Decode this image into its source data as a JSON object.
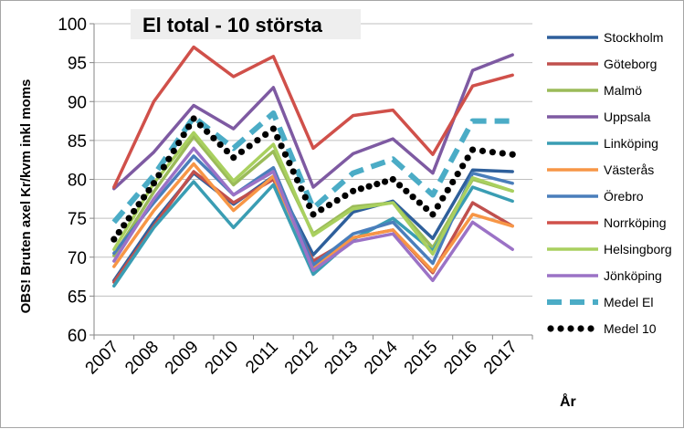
{
  "chart_data": {
    "type": "line",
    "title": "El total - 10 största",
    "ylabel": "OBS! Bruten axel Kr/kvm inkl moms",
    "xlabel": "År",
    "ylim": [
      60,
      100
    ],
    "yticks": [
      60,
      65,
      70,
      75,
      80,
      85,
      90,
      95,
      100
    ],
    "grid": "horizontal",
    "legend_position": "right",
    "categories": [
      "2007",
      "2008",
      "2009",
      "2010",
      "2011",
      "2012",
      "2013",
      "2014",
      "2015",
      "2016",
      "2017"
    ],
    "series": [
      {
        "name": "Stockholm",
        "color": "#2e5f9b",
        "style": "solid",
        "values": [
          67.0,
          74.5,
          80.8,
          76.8,
          80.4,
          70.3,
          75.8,
          77.2,
          72.4,
          81.2,
          81.0
        ]
      },
      {
        "name": "Göteborg",
        "color": "#c0504d",
        "style": "solid",
        "values": [
          66.8,
          74.0,
          81.0,
          77.0,
          80.0,
          69.5,
          72.5,
          73.5,
          68.0,
          77.0,
          74.0
        ]
      },
      {
        "name": "Malmö",
        "color": "#9bbb59",
        "style": "solid",
        "values": [
          70.2,
          78.4,
          85.5,
          79.3,
          83.6,
          73.0,
          76.5,
          77.0,
          71.2,
          80.0,
          78.5
        ]
      },
      {
        "name": "Uppsala",
        "color": "#7e5aa2",
        "style": "solid",
        "values": [
          78.8,
          83.5,
          89.5,
          86.5,
          91.8,
          79.0,
          83.3,
          85.2,
          80.8,
          94.0,
          96.0
        ]
      },
      {
        "name": "Linköping",
        "color": "#3a9db3",
        "style": "solid",
        "values": [
          66.3,
          73.8,
          79.7,
          73.8,
          79.3,
          67.8,
          72.3,
          75.0,
          70.8,
          79.0,
          77.2
        ]
      },
      {
        "name": "Västerås",
        "color": "#f79646",
        "style": "solid",
        "values": [
          68.8,
          76.0,
          82.0,
          76.0,
          80.4,
          68.7,
          72.5,
          73.5,
          68.2,
          75.5,
          74.0
        ]
      },
      {
        "name": "Örebro",
        "color": "#4a7ebb",
        "style": "solid",
        "values": [
          70.5,
          77.0,
          83.0,
          78.0,
          81.5,
          69.0,
          73.0,
          74.5,
          69.2,
          80.8,
          79.5
        ]
      },
      {
        "name": "Norrköping",
        "color": "#d0504a",
        "style": "solid",
        "values": [
          79.0,
          90.0,
          97.0,
          93.2,
          95.8,
          84.0,
          88.2,
          88.9,
          83.2,
          92.0,
          93.4
        ]
      },
      {
        "name": "Helsingborg",
        "color": "#a9d05f",
        "style": "solid",
        "values": [
          71.0,
          79.5,
          86.0,
          79.8,
          84.5,
          72.8,
          76.2,
          77.0,
          70.4,
          80.2,
          78.5
        ]
      },
      {
        "name": "Jönköping",
        "color": "#9b72c6",
        "style": "solid",
        "values": [
          69.5,
          77.5,
          84.0,
          78.0,
          81.0,
          68.3,
          72.0,
          73.0,
          67.0,
          74.5,
          71.0
        ]
      },
      {
        "name": "Medel El",
        "color": "#4bacc6",
        "style": "dash",
        "values": [
          74.5,
          80.5,
          88.0,
          84.0,
          88.5,
          76.3,
          80.8,
          82.6,
          78.0,
          87.5,
          87.5
        ]
      },
      {
        "name": "Medel 10",
        "color": "#000000",
        "style": "dotted",
        "values": [
          72.3,
          79.5,
          87.8,
          82.8,
          86.5,
          75.5,
          78.5,
          80.0,
          75.5,
          83.8,
          83.2
        ]
      }
    ]
  }
}
